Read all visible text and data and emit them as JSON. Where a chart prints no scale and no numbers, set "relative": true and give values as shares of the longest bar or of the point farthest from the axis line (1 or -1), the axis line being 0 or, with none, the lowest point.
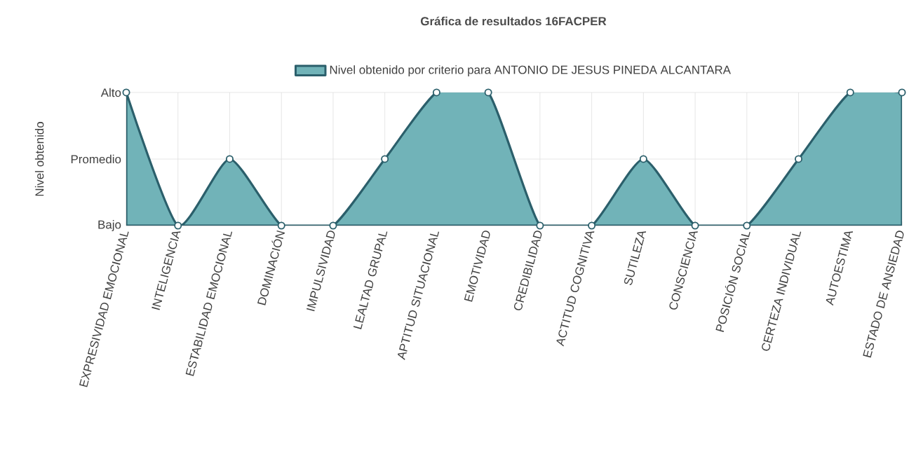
{
  "chart_data": {
    "type": "area",
    "title": "Gráfica de resultados 16FACPER",
    "ylabel": "Nivel obtenido",
    "categories": [
      "EXPRESIVIDAD EMOCIONAL",
      "INTELIGENCIA",
      "ESTABILIDAD EMOCIONAL",
      "DOMINACIÓN",
      "IMPULSIVIDAD",
      "LEALTAD GRUPAL",
      "APTITUD SITUACIONAL",
      "EMOTIVIDAD",
      "CREDIBILIDAD",
      "ACTITUD COGNITIVA",
      "SUTILEZA",
      "CONSCIENCIA",
      "POSICIÓN SOCIAL",
      "CERTEZA INDIVIDUAL",
      "AUTOESTIMA",
      "ESTADO DE ANSIEDAD"
    ],
    "series": [
      {
        "name": "Nivel obtenido por criterio para ANTONIO DE JESUS PINEDA ALCANTARA",
        "color": "#2b5f6b",
        "values": [
          1,
          0,
          0.5,
          0,
          0,
          0.5,
          1,
          1,
          0,
          0,
          0.5,
          0,
          0,
          0.5,
          1,
          1
        ]
      }
    ],
    "relative": true,
    "annotations": [
      "Bajo",
      "Promedio",
      "Alto"
    ],
    "grid": true,
    "legend": "top",
    "marker": "circle"
  }
}
